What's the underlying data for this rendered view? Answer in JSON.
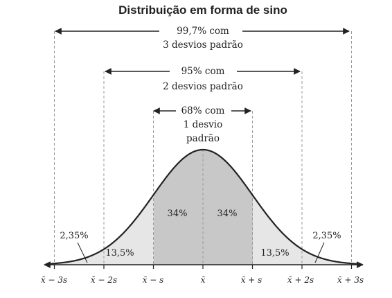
{
  "title": "Distribuição em forma de sino",
  "ranges": {
    "three_sd": {
      "line1": "99,7% com",
      "line2": "3 desvios padrão"
    },
    "two_sd": {
      "line1": "95% com",
      "line2": "2 desvios padrão"
    },
    "one_sd": {
      "line1": "68% com",
      "line2": "1 desvio",
      "line3": "padrão"
    }
  },
  "regions": {
    "left_tail": "2,35%",
    "left_mid": "13,5%",
    "left_center": "34%",
    "right_center": "34%",
    "right_mid": "13,5%",
    "right_tail": "2,35%"
  },
  "ticks": {
    "m3": "x̄ − 3s",
    "m2": "x̄ − 2s",
    "m1": "x̄ − s",
    "mean": "x̄",
    "p1": "x̄ + s",
    "p2": "x̄ + 2s",
    "p3": "x̄ + 3s"
  },
  "colors": {
    "inner_fill": "#c8c8c8",
    "outer_fill": "#e6e6e6",
    "curve": "#222222",
    "guides": "#9a9a9a"
  }
}
